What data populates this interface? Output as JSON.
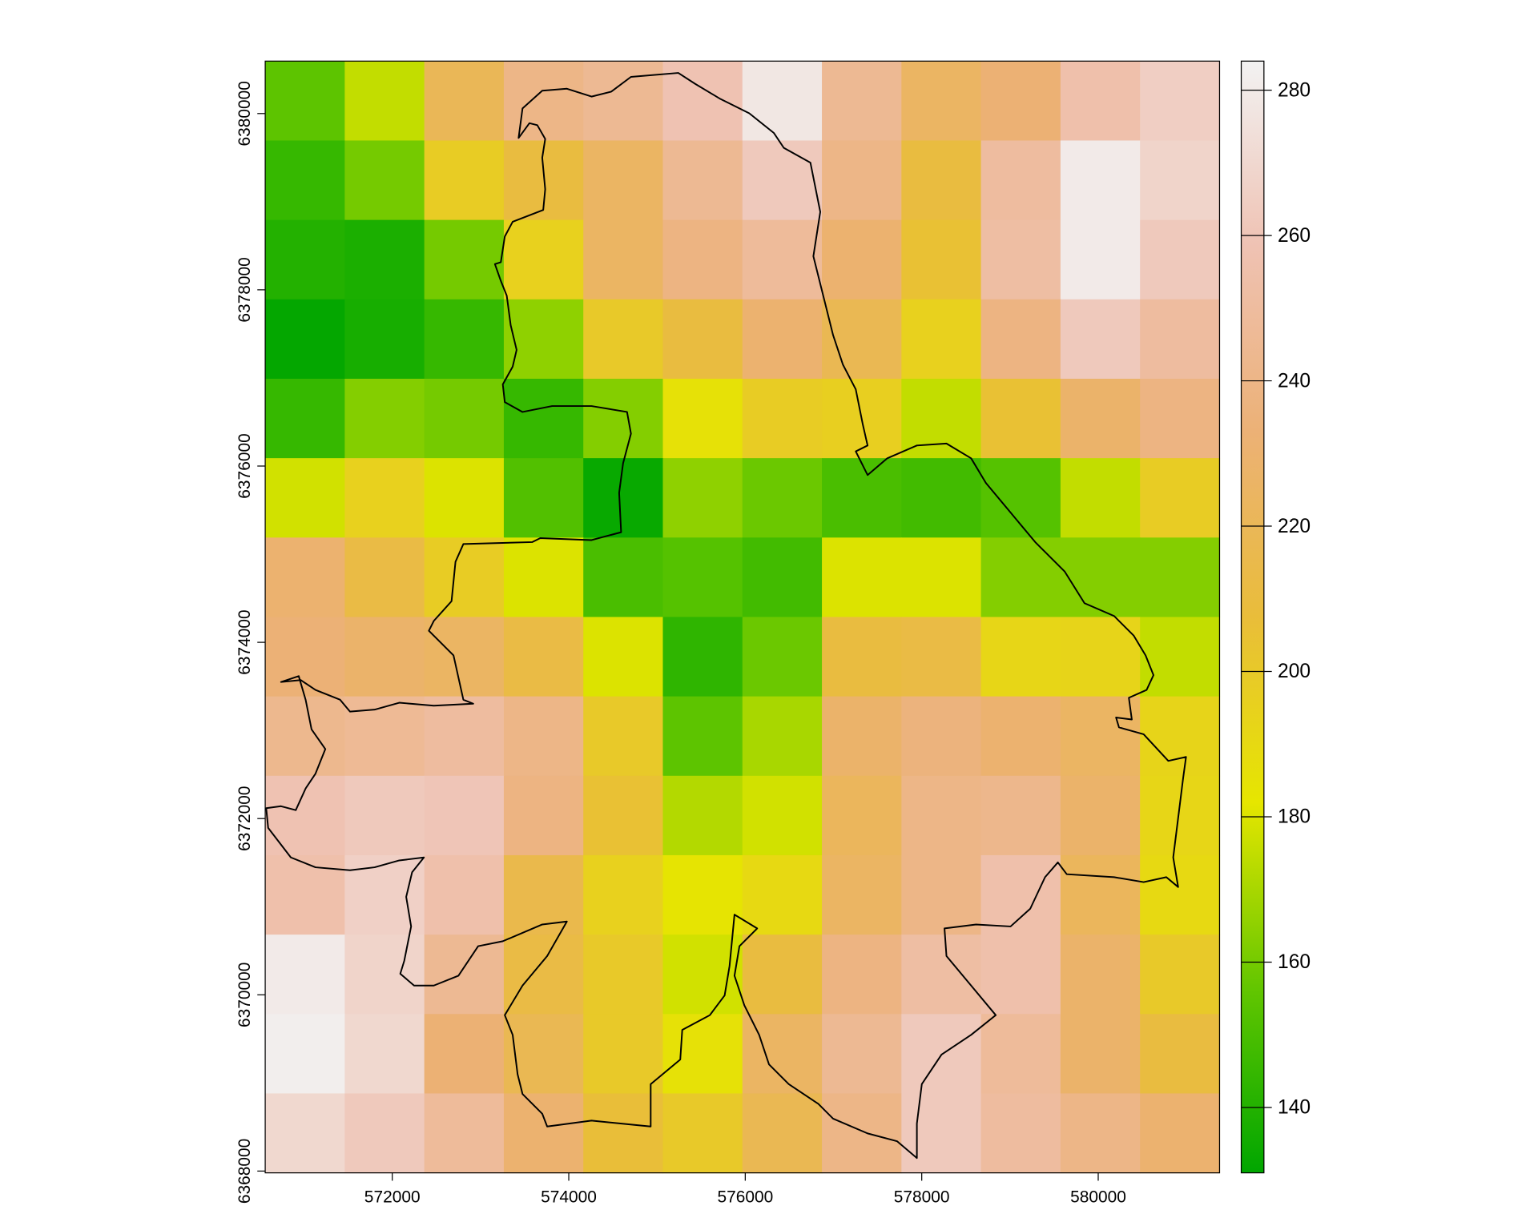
{
  "chart_data": {
    "type": "heatmap",
    "xlim": [
      570560,
      581375
    ],
    "ylim": [
      6367980,
      6380595
    ],
    "xticks": [
      572000,
      574000,
      576000,
      578000,
      580000
    ],
    "yticks": [
      6368000,
      6370000,
      6372000,
      6374000,
      6376000,
      6378000,
      6380000
    ],
    "zlim": [
      131,
      284
    ],
    "zticks": [
      140,
      160,
      180,
      200,
      220,
      240,
      260,
      280
    ],
    "colors": [
      "#00A600",
      "#63C600",
      "#E6E600",
      "#E9BD3A",
      "#ECB176",
      "#EFC2B3",
      "#F2F2F2"
    ],
    "values": [
      [
        155,
        175,
        220,
        240,
        245,
        258,
        278,
        245,
        225,
        232,
        255,
        265
      ],
      [
        145,
        160,
        198,
        210,
        225,
        245,
        262,
        240,
        210,
        250,
        280,
        268
      ],
      [
        140,
        138,
        160,
        195,
        225,
        238,
        248,
        230,
        205,
        252,
        280,
        262
      ],
      [
        132,
        137,
        145,
        165,
        200,
        210,
        230,
        218,
        195,
        238,
        262,
        250
      ],
      [
        145,
        163,
        160,
        145,
        163,
        185,
        198,
        196,
        175,
        205,
        228,
        238
      ],
      [
        178,
        195,
        180,
        152,
        133,
        165,
        158,
        150,
        148,
        153,
        175,
        198
      ],
      [
        230,
        212,
        198,
        180,
        150,
        153,
        148,
        180,
        180,
        163,
        163,
        163
      ],
      [
        233,
        228,
        225,
        212,
        180,
        143,
        158,
        210,
        212,
        192,
        193,
        175
      ],
      [
        243,
        246,
        250,
        240,
        200,
        155,
        170,
        228,
        236,
        230,
        225,
        193
      ],
      [
        258,
        262,
        260,
        238,
        205,
        172,
        178,
        222,
        240,
        242,
        228,
        192
      ],
      [
        255,
        266,
        255,
        215,
        195,
        183,
        190,
        225,
        240,
        255,
        222,
        190
      ],
      [
        280,
        268,
        245,
        212,
        200,
        178,
        210,
        238,
        252,
        255,
        228,
        200
      ],
      [
        282,
        270,
        232,
        218,
        200,
        185,
        225,
        245,
        262,
        248,
        228,
        210
      ],
      [
        270,
        262,
        248,
        230,
        207,
        200,
        218,
        240,
        262,
        250,
        240,
        230
      ]
    ]
  }
}
